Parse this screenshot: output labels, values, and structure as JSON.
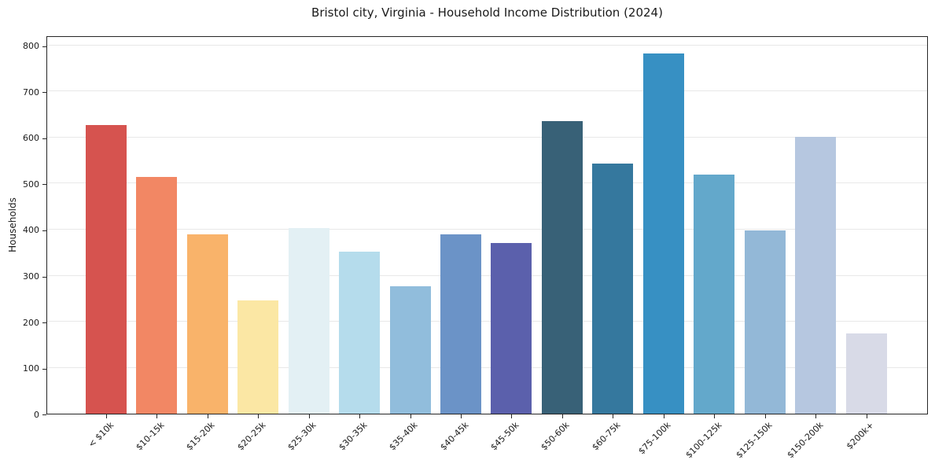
{
  "page": {
    "background": "#ffffff"
  },
  "chart_data": {
    "type": "bar",
    "title": "Bristol city, Virginia - Household Income Distribution (2024)",
    "xlabel": "",
    "ylabel": "Households",
    "categories": [
      "< $10k",
      "$10-15k",
      "$15-20k",
      "$20-25k",
      "$25-30k",
      "$30-35k",
      "$35-40k",
      "$40-45k",
      "$45-50k",
      "$50-60k",
      "$60-75k",
      "$75-100k",
      "$100-125k",
      "$125-150k",
      "$150-200k",
      "$200k+"
    ],
    "values": [
      628,
      514,
      389,
      246,
      404,
      352,
      277,
      389,
      371,
      635,
      544,
      783,
      520,
      399,
      601,
      175
    ],
    "bar_colors": [
      "#d6534f",
      "#f28764",
      "#f9b36a",
      "#fbe7a4",
      "#e3f0f4",
      "#b5dcec",
      "#91bddc",
      "#6b93c7",
      "#5b60ac",
      "#386177",
      "#35789e",
      "#3790c3",
      "#63a8cb",
      "#93b8d7",
      "#b6c7e0",
      "#d8dae7"
    ],
    "yticks": [
      0,
      100,
      200,
      300,
      400,
      500,
      600,
      700,
      800
    ],
    "ylim": [
      0,
      822
    ],
    "grid": true,
    "legend": false,
    "axis_color": "#262626",
    "grid_color": "#e8e8e8",
    "text_color": "#1a1a1a"
  }
}
